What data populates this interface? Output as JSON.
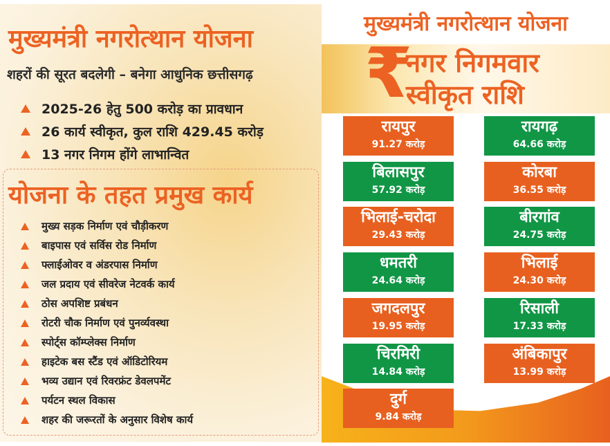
{
  "left": {
    "title": "मुख्यमंत्री नगरोत्थान योजना",
    "subtitle": "शहरों की सूरत बदलेगी – बनेगा आधुनिक छत्तीसगढ़",
    "highlights": [
      "2025-26 हेतु 500 करोड़ का प्रावधान",
      "26 कार्य स्वीकृत, कुल राशि 429.45 करोड़",
      "13 नगर निगम होंगे लाभान्वित"
    ],
    "works_heading": "योजना के तहत प्रमुख कार्य",
    "works": [
      "मुख्य सड़क निर्माण एवं चौड़ीकरण",
      "बाइपास एवं सर्विस रोड निर्माण",
      "फ्लाईओवर व अंडरपास निर्माण",
      "जल प्रदाय एवं सीवरेज नेटवर्क कार्य",
      "ठोस अपशिष्ट प्रबंधन",
      "रोटरी चौक निर्माण एवं पुनर्व्यवस्था",
      "स्पोर्ट्स कॉम्प्लेक्स निर्माण",
      "हाइटेक बस स्टैंड एवं ऑडिटोरियम",
      "भव्य उद्यान एवं रिवरफ्रंट डेवलपमेंट",
      "पर्यटन स्थल विकास",
      "शहर की जरूरतों के अनुसार विशेष कार्य"
    ]
  },
  "right": {
    "title": "मुख्यमंत्री नगरोत्थान योजना",
    "rupee_symbol": "₹",
    "banner_line1": "नगर निगमवार",
    "banner_line2": "स्वीकृत राशि",
    "corporations": [
      {
        "name": "रायपुर",
        "amount": "91.27 करोड़",
        "color": "#e8601f"
      },
      {
        "name": "रायगढ़",
        "amount": "64.66 करोड़",
        "color": "#119646"
      },
      {
        "name": "बिलासपुर",
        "amount": "57.92 करोड़",
        "color": "#119646"
      },
      {
        "name": "कोरबा",
        "amount": "36.55 करोड़",
        "color": "#e8601f"
      },
      {
        "name": "भिलाई-चरोदा",
        "amount": "29.43 करोड़",
        "color": "#e8601f"
      },
      {
        "name": "बीरगांव",
        "amount": "24.75 करोड़",
        "color": "#119646"
      },
      {
        "name": "धमतरी",
        "amount": "24.64 करोड़",
        "color": "#119646"
      },
      {
        "name": "भिलाई",
        "amount": "24.30 करोड़",
        "color": "#e8601f"
      },
      {
        "name": "जगदलपुर",
        "amount": "19.95 करोड़",
        "color": "#e8601f"
      },
      {
        "name": "रिसाली",
        "amount": "17.33 करोड़",
        "color": "#119646"
      },
      {
        "name": "चिरमिरी",
        "amount": "14.84 करोड़",
        "color": "#119646"
      },
      {
        "name": "अंबिकापुर",
        "amount": "13.99 करोड़",
        "color": "#e8601f"
      },
      {
        "name": "दुर्ग",
        "amount": "9.84 करोड़",
        "color": "#e8601f"
      }
    ]
  }
}
